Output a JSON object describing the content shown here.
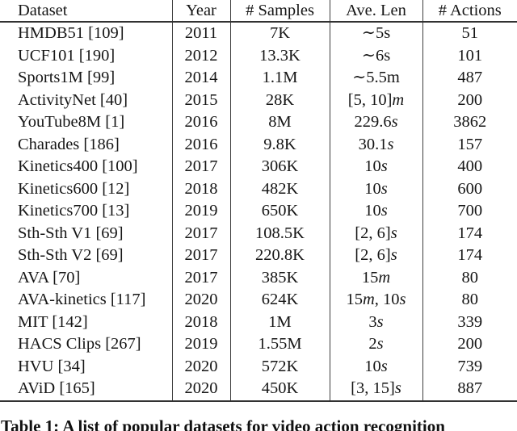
{
  "page": {
    "background": "#ffffff",
    "text_color": "#161616",
    "rule_color": "#3d3d3d"
  },
  "table": {
    "headers": [
      "Dataset",
      "Year",
      "# Samples",
      "Ave. Len",
      "# Actions"
    ],
    "rows": [
      {
        "dataset": "HMDB51 [109]",
        "year": "2011",
        "samples": "7K",
        "ave_len": "∼5s",
        "actions": "51"
      },
      {
        "dataset": "UCF101 [190]",
        "year": "2012",
        "samples": "13.3K",
        "ave_len": "∼6s",
        "actions": "101"
      },
      {
        "dataset": "Sports1M [99]",
        "year": "2014",
        "samples": "1.1M",
        "ave_len": "∼5.5m",
        "actions": "487"
      },
      {
        "dataset": "ActivityNet [40]",
        "year": "2015",
        "samples": "28K",
        "ave_len": "[5, 10]m",
        "actions": "200"
      },
      {
        "dataset": "YouTube8M [1]",
        "year": "2016",
        "samples": "8M",
        "ave_len": "229.6s",
        "actions": "3862"
      },
      {
        "dataset": "Charades [186]",
        "year": "2016",
        "samples": "9.8K",
        "ave_len": "30.1s",
        "actions": "157"
      },
      {
        "dataset": "Kinetics400 [100]",
        "year": "2017",
        "samples": "306K",
        "ave_len": "10s",
        "actions": "400"
      },
      {
        "dataset": "Kinetics600 [12]",
        "year": "2018",
        "samples": "482K",
        "ave_len": "10s",
        "actions": "600"
      },
      {
        "dataset": "Kinetics700 [13]",
        "year": "2019",
        "samples": "650K",
        "ave_len": "10s",
        "actions": "700"
      },
      {
        "dataset": "Sth-Sth V1 [69]",
        "year": "2017",
        "samples": "108.5K",
        "ave_len": "[2, 6]s",
        "actions": "174"
      },
      {
        "dataset": "Sth-Sth V2 [69]",
        "year": "2017",
        "samples": "220.8K",
        "ave_len": "[2, 6]s",
        "actions": "174"
      },
      {
        "dataset": "AVA [70]",
        "year": "2017",
        "samples": "385K",
        "ave_len": "15m",
        "actions": "80"
      },
      {
        "dataset": "AVA-kinetics [117]",
        "year": "2020",
        "samples": "624K",
        "ave_len": "15m, 10s",
        "actions": "80"
      },
      {
        "dataset": "MIT [142]",
        "year": "2018",
        "samples": "1M",
        "ave_len": "3s",
        "actions": "339"
      },
      {
        "dataset": "HACS Clips [267]",
        "year": "2019",
        "samples": "1.55M",
        "ave_len": "2s",
        "actions": "200"
      },
      {
        "dataset": "HVU [34]",
        "year": "2020",
        "samples": "572K",
        "ave_len": "10s",
        "actions": "739"
      },
      {
        "dataset": "AViD [165]",
        "year": "2020",
        "samples": "450K",
        "ave_len": "[3, 15]s",
        "actions": "887"
      }
    ]
  },
  "caption": {
    "text": "Table 1: A list of popular datasets for video action recognition"
  }
}
